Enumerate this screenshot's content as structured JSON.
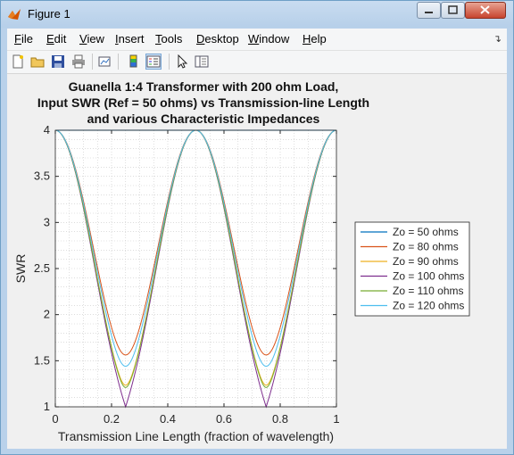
{
  "window": {
    "title": "Figure 1",
    "menu": [
      "File",
      "Edit",
      "View",
      "Insert",
      "Tools",
      "Desktop",
      "Window",
      "Help"
    ],
    "menu_mnemonic": [
      "F",
      "E",
      "V",
      "I",
      "T",
      "D",
      "W",
      "H"
    ],
    "toolbar_icons": [
      "new-figure-icon",
      "open-file-icon",
      "save-icon",
      "print-icon",
      "link-plot-icon",
      "insert-colorbar-icon",
      "insert-legend-icon",
      "edit-plot-icon",
      "property-inspector-icon"
    ],
    "colors": {
      "titlebar": "#bcd3eb",
      "figure_bg": "#f0f0f0"
    }
  },
  "chart_data": {
    "type": "line",
    "title": [
      "Guanella 1:4 Transformer with 200 ohm Load,",
      "Input SWR (Ref = 50 ohms) vs Transmission-line Length",
      "and various Characteristic Impedances"
    ],
    "xlabel": "Transmission Line Length (fraction of wavelength)",
    "ylabel": "SWR",
    "xlim": [
      0,
      1
    ],
    "ylim": [
      1,
      4
    ],
    "xticks": [
      "0",
      "0.2",
      "0.4",
      "0.6",
      "0.8",
      "1"
    ],
    "yticks": [
      "1",
      "1.5",
      "2",
      "2.5",
      "3",
      "3.5",
      "4"
    ],
    "grid": "minor-dotted",
    "legend_position": "outside-right",
    "model": {
      "load_ohms": 200,
      "reference_ohms": 50
    },
    "series": [
      {
        "name": "Zo = 50 ohms",
        "zo": 50,
        "color": "#0072bd"
      },
      {
        "name": "Zo = 80 ohms",
        "zo": 80,
        "color": "#d95319"
      },
      {
        "name": "Zo = 90 ohms",
        "zo": 90,
        "color": "#edb120"
      },
      {
        "name": "Zo = 100 ohms",
        "zo": 100,
        "color": "#7e2f8e"
      },
      {
        "name": "Zo = 110 ohms",
        "zo": 110,
        "color": "#77ac30"
      },
      {
        "name": "Zo = 120 ohms",
        "zo": 120,
        "color": "#4dbeee"
      }
    ]
  }
}
